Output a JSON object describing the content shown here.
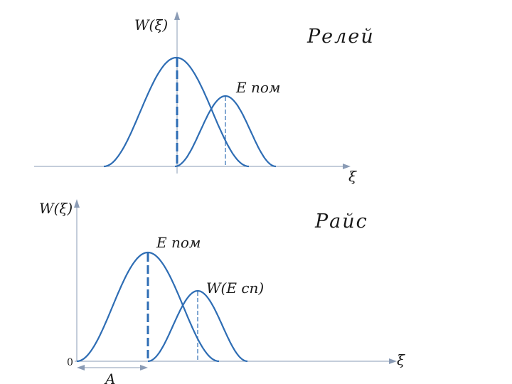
{
  "top_panel": {
    "title": "Релей",
    "y_axis_label": "W(ξ)",
    "x_axis_label": "ξ",
    "curve_label": "E пом"
  },
  "bottom_panel": {
    "title": "Райс",
    "y_axis_label": "W(ξ)",
    "x_axis_label": "ξ",
    "curve_label_1": "E пом",
    "curve_label_2": "W(E сп)",
    "origin_label": "0",
    "offset_label": "A"
  },
  "colors": {
    "curve": "#2e6db4",
    "axis": "#8a9bb5",
    "text": "#1a1a1a"
  }
}
